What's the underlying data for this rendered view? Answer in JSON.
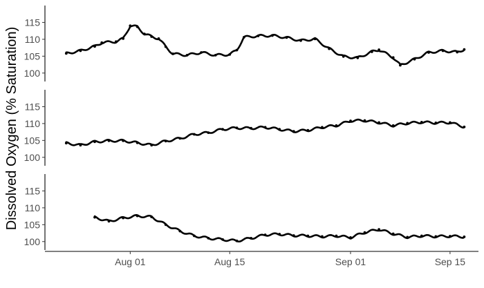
{
  "chart_data": {
    "type": "scatter",
    "ylabel": "Dissolved Oxygen (% Saturation)",
    "x_ticks": [
      "Aug 01",
      "Aug 15",
      "Sep 01",
      "Sep 15"
    ],
    "x_tick_dates": [
      "2019-08-01",
      "2019-08-15",
      "2019-09-01",
      "2019-09-15"
    ],
    "xlim": [
      "2019-07-20",
      "2019-09-19"
    ],
    "y_ticks": [
      100,
      105,
      110,
      115
    ],
    "ylim": [
      97.5,
      120
    ],
    "grid": false,
    "marker_color": "#000000",
    "series": [
      {
        "points": [
          [
            "2019-07-23",
            105.8
          ],
          [
            "2019-07-25",
            106.6
          ],
          [
            "2019-07-27",
            107.9
          ],
          [
            "2019-07-28",
            109.0
          ],
          [
            "2019-07-30",
            109.3
          ],
          [
            "2019-07-31",
            110.2
          ],
          [
            "2019-08-01",
            114.0
          ],
          [
            "2019-08-02",
            113.7
          ],
          [
            "2019-08-03",
            111.6
          ],
          [
            "2019-08-04",
            110.8
          ],
          [
            "2019-08-05",
            110.2
          ],
          [
            "2019-08-06",
            107.8
          ],
          [
            "2019-08-07",
            105.7
          ],
          [
            "2019-08-09",
            105.3
          ],
          [
            "2019-08-11",
            106.1
          ],
          [
            "2019-08-13",
            105.3
          ],
          [
            "2019-08-15",
            105.5
          ],
          [
            "2019-08-16",
            106.8
          ],
          [
            "2019-08-17",
            110.6
          ],
          [
            "2019-08-19",
            111.0
          ],
          [
            "2019-08-21",
            111.1
          ],
          [
            "2019-08-23",
            110.5
          ],
          [
            "2019-08-25",
            109.6
          ],
          [
            "2019-08-27",
            110.1
          ],
          [
            "2019-08-29",
            107.2
          ],
          [
            "2019-08-31",
            104.9
          ],
          [
            "2019-09-02",
            104.5
          ],
          [
            "2019-09-04",
            106.3
          ],
          [
            "2019-09-05",
            106.9
          ],
          [
            "2019-09-07",
            104.6
          ],
          [
            "2019-09-08",
            102.3
          ],
          [
            "2019-09-10",
            104.1
          ],
          [
            "2019-09-12",
            106.1
          ],
          [
            "2019-09-14",
            106.6
          ],
          [
            "2019-09-16",
            106.2
          ],
          [
            "2019-09-17",
            107.0
          ]
        ]
      },
      {
        "points": [
          [
            "2019-07-23",
            104.2
          ],
          [
            "2019-07-25",
            103.6
          ],
          [
            "2019-07-27",
            104.6
          ],
          [
            "2019-07-29",
            104.9
          ],
          [
            "2019-07-31",
            104.9
          ],
          [
            "2019-08-02",
            104.3
          ],
          [
            "2019-08-04",
            103.6
          ],
          [
            "2019-08-06",
            104.8
          ],
          [
            "2019-08-08",
            105.6
          ],
          [
            "2019-08-10",
            106.8
          ],
          [
            "2019-08-12",
            107.3
          ],
          [
            "2019-08-14",
            108.3
          ],
          [
            "2019-08-16",
            108.7
          ],
          [
            "2019-08-18",
            108.6
          ],
          [
            "2019-08-20",
            108.9
          ],
          [
            "2019-08-22",
            108.3
          ],
          [
            "2019-08-24",
            107.7
          ],
          [
            "2019-08-26",
            108.0
          ],
          [
            "2019-08-28",
            108.9
          ],
          [
            "2019-08-30",
            109.4
          ],
          [
            "2019-09-01",
            110.8
          ],
          [
            "2019-09-03",
            110.9
          ],
          [
            "2019-09-05",
            110.3
          ],
          [
            "2019-09-07",
            109.4
          ],
          [
            "2019-09-09",
            110.1
          ],
          [
            "2019-09-11",
            110.4
          ],
          [
            "2019-09-13",
            110.2
          ],
          [
            "2019-09-15",
            110.3
          ],
          [
            "2019-09-17",
            109.0
          ]
        ]
      },
      {
        "points": [
          [
            "2019-07-27",
            107.2
          ],
          [
            "2019-07-29",
            106.0
          ],
          [
            "2019-07-31",
            107.0
          ],
          [
            "2019-08-02",
            107.6
          ],
          [
            "2019-08-04",
            107.3
          ],
          [
            "2019-08-06",
            105.0
          ],
          [
            "2019-08-08",
            103.1
          ],
          [
            "2019-08-10",
            101.7
          ],
          [
            "2019-08-12",
            101.0
          ],
          [
            "2019-08-14",
            100.6
          ],
          [
            "2019-08-16",
            100.2
          ],
          [
            "2019-08-18",
            101.0
          ],
          [
            "2019-08-20",
            102.0
          ],
          [
            "2019-08-22",
            102.2
          ],
          [
            "2019-08-24",
            101.8
          ],
          [
            "2019-08-26",
            101.7
          ],
          [
            "2019-08-28",
            101.5
          ],
          [
            "2019-08-30",
            101.7
          ],
          [
            "2019-09-01",
            101.2
          ],
          [
            "2019-09-03",
            102.7
          ],
          [
            "2019-09-05",
            103.6
          ],
          [
            "2019-09-07",
            102.3
          ],
          [
            "2019-09-09",
            101.3
          ],
          [
            "2019-09-11",
            101.7
          ],
          [
            "2019-09-13",
            101.5
          ],
          [
            "2019-09-15",
            101.6
          ],
          [
            "2019-09-17",
            101.4
          ]
        ]
      }
    ]
  }
}
